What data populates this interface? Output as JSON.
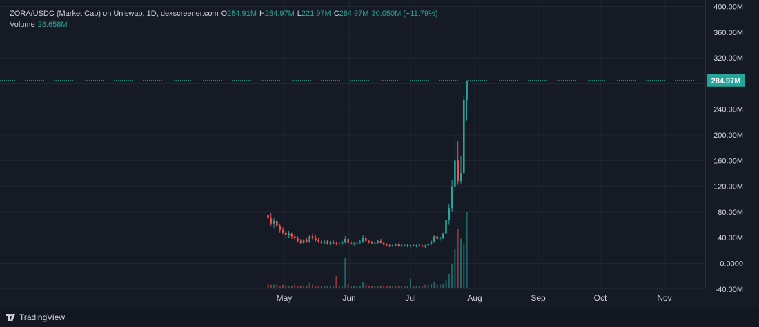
{
  "header": {
    "symbol": "ZORA/USDC (Market Cap) on Uniswap, 1D, dexscreener.com",
    "ohlc": [
      {
        "label": "O",
        "value": "254.91M"
      },
      {
        "label": "H",
        "value": "284.97M"
      },
      {
        "label": "L",
        "value": "221.97M"
      },
      {
        "label": "C",
        "value": "284.97M"
      }
    ],
    "change": "30.050M (+11.79%)",
    "volume_label": "Volume",
    "volume_value": "28.658M"
  },
  "price_tag": "284.97M",
  "footer": {
    "brand": "TradingView",
    "brand_icon": "tradingview-logo-icon"
  },
  "colors": {
    "background": "#161a25",
    "up": "#26a69a",
    "down": "#ef5350",
    "grid": "#232734",
    "text": "#d1d4dc"
  },
  "chart_data": {
    "type": "candlestick",
    "y_axis_ticks": [
      "400.00M",
      "360.00M",
      "320.00M",
      "280.00M",
      "240.00M",
      "200.00M",
      "160.00M",
      "120.00M",
      "80.00M",
      "40.00M",
      "0.0000",
      "-40.00M"
    ],
    "ylim": [
      -40,
      400
    ],
    "y_unit": "M",
    "x_tick_labels": [
      "May",
      "Jun",
      "Jul",
      "Aug",
      "Sep",
      "Oct",
      "Nov"
    ],
    "grid": true,
    "last_price_line": 284.97,
    "candles": [
      {
        "o": 75,
        "h": 90,
        "l": 0,
        "c": 70
      },
      {
        "o": 70,
        "h": 78,
        "l": 58,
        "c": 62
      },
      {
        "o": 62,
        "h": 70,
        "l": 55,
        "c": 66
      },
      {
        "o": 66,
        "h": 68,
        "l": 55,
        "c": 58
      },
      {
        "o": 58,
        "h": 62,
        "l": 48,
        "c": 52
      },
      {
        "o": 52,
        "h": 56,
        "l": 45,
        "c": 48
      },
      {
        "o": 48,
        "h": 52,
        "l": 40,
        "c": 44
      },
      {
        "o": 44,
        "h": 50,
        "l": 40,
        "c": 46
      },
      {
        "o": 46,
        "h": 48,
        "l": 38,
        "c": 42
      },
      {
        "o": 42,
        "h": 45,
        "l": 36,
        "c": 39
      },
      {
        "o": 39,
        "h": 42,
        "l": 33,
        "c": 35
      },
      {
        "o": 35,
        "h": 38,
        "l": 30,
        "c": 32
      },
      {
        "o": 32,
        "h": 38,
        "l": 30,
        "c": 36
      },
      {
        "o": 36,
        "h": 40,
        "l": 32,
        "c": 34
      },
      {
        "o": 34,
        "h": 44,
        "l": 32,
        "c": 42
      },
      {
        "o": 42,
        "h": 46,
        "l": 36,
        "c": 40
      },
      {
        "o": 40,
        "h": 44,
        "l": 34,
        "c": 36
      },
      {
        "o": 36,
        "h": 40,
        "l": 32,
        "c": 34
      },
      {
        "o": 34,
        "h": 37,
        "l": 30,
        "c": 32
      },
      {
        "o": 32,
        "h": 36,
        "l": 29,
        "c": 34
      },
      {
        "o": 34,
        "h": 36,
        "l": 29,
        "c": 31
      },
      {
        "o": 31,
        "h": 35,
        "l": 28,
        "c": 33
      },
      {
        "o": 33,
        "h": 36,
        "l": 30,
        "c": 31
      },
      {
        "o": 31,
        "h": 34,
        "l": 28,
        "c": 30
      },
      {
        "o": 30,
        "h": 33,
        "l": 27,
        "c": 31
      },
      {
        "o": 31,
        "h": 35,
        "l": 28,
        "c": 33
      },
      {
        "o": 33,
        "h": 42,
        "l": 31,
        "c": 38
      },
      {
        "o": 38,
        "h": 40,
        "l": 30,
        "c": 32
      },
      {
        "o": 32,
        "h": 35,
        "l": 29,
        "c": 30
      },
      {
        "o": 30,
        "h": 33,
        "l": 27,
        "c": 31
      },
      {
        "o": 31,
        "h": 34,
        "l": 28,
        "c": 32
      },
      {
        "o": 32,
        "h": 36,
        "l": 30,
        "c": 34
      },
      {
        "o": 34,
        "h": 44,
        "l": 32,
        "c": 40
      },
      {
        "o": 40,
        "h": 42,
        "l": 33,
        "c": 35
      },
      {
        "o": 35,
        "h": 37,
        "l": 31,
        "c": 33
      },
      {
        "o": 33,
        "h": 35,
        "l": 30,
        "c": 31
      },
      {
        "o": 31,
        "h": 34,
        "l": 28,
        "c": 32
      },
      {
        "o": 32,
        "h": 36,
        "l": 30,
        "c": 35
      },
      {
        "o": 35,
        "h": 38,
        "l": 31,
        "c": 32
      },
      {
        "o": 32,
        "h": 34,
        "l": 28,
        "c": 29
      },
      {
        "o": 29,
        "h": 31,
        "l": 26,
        "c": 28
      },
      {
        "o": 28,
        "h": 30,
        "l": 25,
        "c": 27
      },
      {
        "o": 27,
        "h": 30,
        "l": 25,
        "c": 28
      },
      {
        "o": 28,
        "h": 31,
        "l": 26,
        "c": 29
      },
      {
        "o": 29,
        "h": 31,
        "l": 26,
        "c": 27
      },
      {
        "o": 27,
        "h": 30,
        "l": 25,
        "c": 28
      },
      {
        "o": 28,
        "h": 30,
        "l": 26,
        "c": 28
      },
      {
        "o": 28,
        "h": 30,
        "l": 25,
        "c": 27
      },
      {
        "o": 27,
        "h": 29,
        "l": 25,
        "c": 28
      },
      {
        "o": 28,
        "h": 30,
        "l": 26,
        "c": 27
      },
      {
        "o": 27,
        "h": 29,
        "l": 25,
        "c": 28
      },
      {
        "o": 28,
        "h": 30,
        "l": 26,
        "c": 27
      },
      {
        "o": 27,
        "h": 29,
        "l": 25,
        "c": 26
      },
      {
        "o": 26,
        "h": 29,
        "l": 24,
        "c": 28
      },
      {
        "o": 28,
        "h": 31,
        "l": 26,
        "c": 30
      },
      {
        "o": 30,
        "h": 36,
        "l": 28,
        "c": 34
      },
      {
        "o": 34,
        "h": 44,
        "l": 32,
        "c": 42
      },
      {
        "o": 42,
        "h": 45,
        "l": 36,
        "c": 38
      },
      {
        "o": 38,
        "h": 42,
        "l": 35,
        "c": 40
      },
      {
        "o": 40,
        "h": 48,
        "l": 38,
        "c": 46
      },
      {
        "o": 46,
        "h": 72,
        "l": 44,
        "c": 68
      },
      {
        "o": 68,
        "h": 92,
        "l": 60,
        "c": 86
      },
      {
        "o": 86,
        "h": 130,
        "l": 80,
        "c": 120
      },
      {
        "o": 120,
        "h": 200,
        "l": 110,
        "c": 160
      },
      {
        "o": 160,
        "h": 190,
        "l": 122,
        "c": 128
      },
      {
        "o": 128,
        "h": 168,
        "l": 124,
        "c": 140
      },
      {
        "o": 140,
        "h": 260,
        "l": 138,
        "c": 254.91
      },
      {
        "o": 254.91,
        "h": 284.97,
        "l": 221.97,
        "c": 284.97
      }
    ],
    "volumes": [
      4,
      3,
      3,
      3,
      2,
      3,
      2,
      2,
      2,
      3,
      2,
      2,
      2,
      2,
      5,
      3,
      2,
      2,
      2,
      2,
      2,
      2,
      2,
      12,
      2,
      2,
      30,
      3,
      2,
      2,
      2,
      2,
      6,
      3,
      2,
      2,
      2,
      2,
      2,
      2,
      2,
      2,
      2,
      2,
      2,
      2,
      2,
      2,
      9,
      2,
      2,
      2,
      2,
      3,
      3,
      4,
      6,
      3,
      3,
      4,
      8,
      14,
      24,
      40,
      60,
      50,
      45,
      77
    ]
  }
}
